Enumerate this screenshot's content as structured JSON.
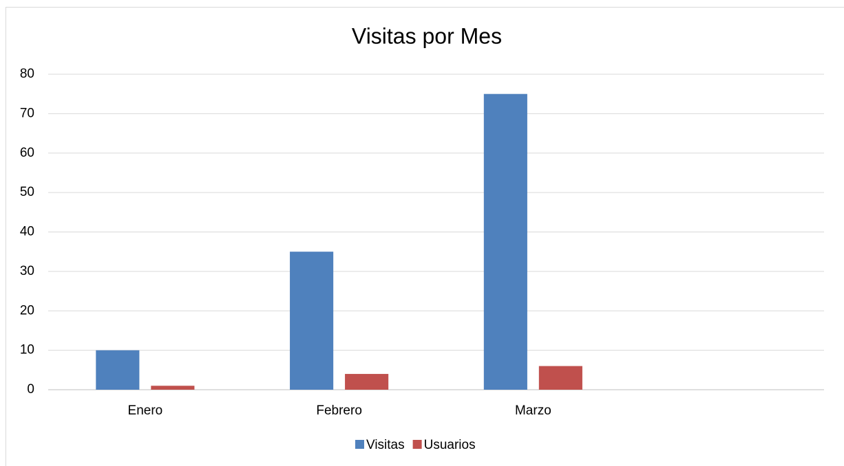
{
  "chart_data": {
    "type": "bar",
    "title": "Visitas por Mes",
    "categories": [
      "Enero",
      "Febrero",
      "Marzo",
      null
    ],
    "series": [
      {
        "name": "Visitas",
        "color": "#4f81bd",
        "values": [
          10,
          35,
          75,
          null
        ]
      },
      {
        "name": "Usuarios",
        "color": "#c0504d",
        "values": [
          1,
          4,
          6,
          null
        ]
      }
    ],
    "ylim": [
      0,
      80
    ],
    "yticks": [
      0,
      10,
      20,
      30,
      40,
      50,
      60,
      70,
      80
    ],
    "grid": true,
    "legend": "bottom"
  }
}
